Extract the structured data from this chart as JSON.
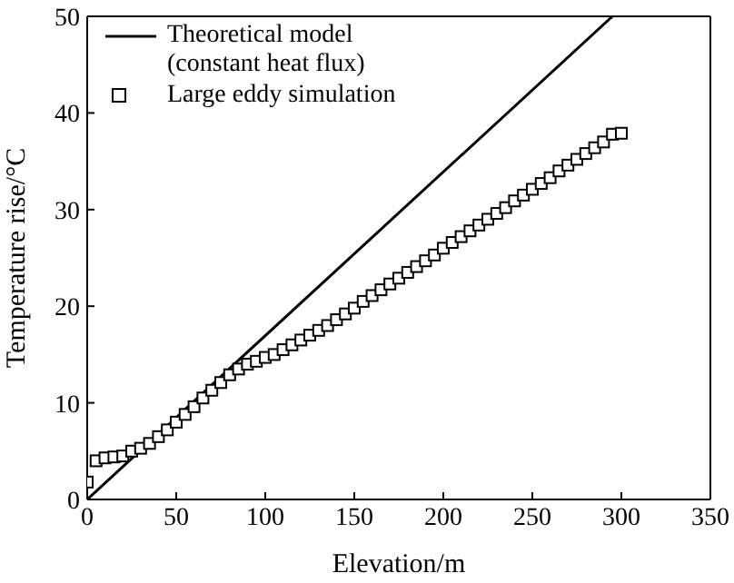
{
  "chart_data": {
    "type": "scatter",
    "xlabel": "Elevation/m",
    "ylabel": "Temperature rise/°C",
    "xlim": [
      0,
      350
    ],
    "xticks": [
      0,
      50,
      100,
      150,
      200,
      250,
      300,
      350
    ],
    "ylim": [
      0,
      50
    ],
    "yticks": [
      0,
      10,
      20,
      30,
      40,
      50
    ],
    "legend": "top left",
    "series": [
      {
        "name": "Theoretical model (constant heat flux)",
        "type": "line",
        "color": "#000000",
        "marker": "none",
        "line_style": "solid",
        "x": [
          0,
          295
        ],
        "values": [
          0,
          50
        ]
      },
      {
        "name": "Large eddy simulation",
        "color": "#000000",
        "marker": "square",
        "x": [
          0,
          5,
          10,
          15,
          20,
          25,
          30,
          35,
          40,
          45,
          50,
          55,
          60,
          65,
          70,
          75,
          80,
          85,
          90,
          95,
          100,
          105,
          110,
          115,
          120,
          125,
          130,
          135,
          140,
          145,
          150,
          155,
          160,
          165,
          170,
          175,
          180,
          185,
          190,
          195,
          200,
          205,
          210,
          215,
          220,
          225,
          230,
          235,
          240,
          245,
          250,
          255,
          260,
          265,
          270,
          275,
          280,
          285,
          290,
          295,
          300
        ],
        "values": [
          1.8,
          4,
          4.3,
          4.4,
          4.5,
          5,
          5.3,
          5.8,
          6.5,
          7.2,
          8,
          8.8,
          9.6,
          10.5,
          11.3,
          12.1,
          12.9,
          13.5,
          14,
          14.3,
          14.7,
          15,
          15.5,
          16,
          16.5,
          17,
          17.5,
          18,
          18.6,
          19.2,
          19.8,
          20.5,
          21.1,
          21.7,
          22.3,
          22.9,
          23.5,
          24.1,
          24.7,
          25.3,
          26,
          26.6,
          27.2,
          27.8,
          28.4,
          29,
          29.6,
          30.2,
          30.9,
          31.5,
          32.1,
          32.7,
          33.3,
          34,
          34.6,
          35.2,
          35.8,
          36.4,
          37,
          37.8,
          37.9
        ]
      }
    ]
  }
}
